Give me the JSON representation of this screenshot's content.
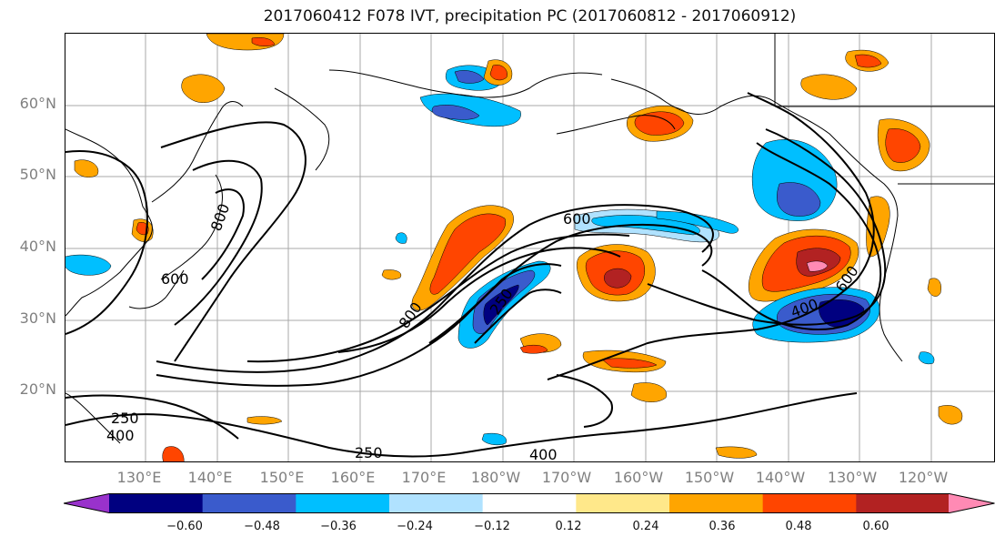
{
  "title": "2017060412 F078 IVT, precipitation PC (2017060812 - 2017060912)",
  "lat_labels": [
    "60°N",
    "50°N",
    "40°N",
    "30°N",
    "20°N"
  ],
  "lon_labels": [
    "130°E",
    "140°E",
    "150°E",
    "160°E",
    "170°E",
    "180°W",
    "170°W",
    "160°W",
    "150°W",
    "140°W",
    "130°W",
    "120°W"
  ],
  "colorbar": {
    "colors": [
      "#9932cc",
      "#000080",
      "#3a5bcc",
      "#00bfff",
      "#b0e2ff",
      "#ffffff",
      "#ffe88a",
      "#ffa500",
      "#ff4500",
      "#b22222",
      "#ff8ab4"
    ],
    "tick_labels": [
      "−0.60",
      "−0.48",
      "−0.36",
      "−0.24",
      "−0.12",
      "0.12",
      "0.24",
      "0.36",
      "0.48",
      "0.60"
    ]
  },
  "contour_labels": [
    "600",
    "250",
    "400",
    "600",
    "800",
    "250",
    "400",
    "250",
    "400",
    "600",
    "800"
  ]
}
